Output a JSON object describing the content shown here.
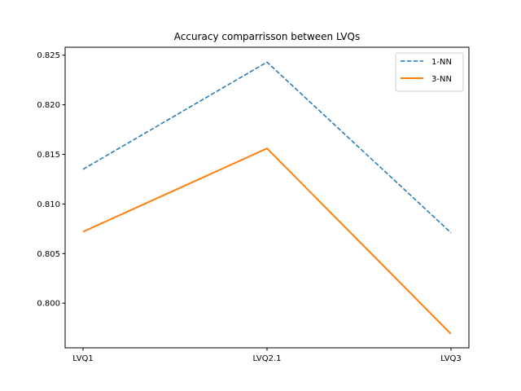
{
  "chart_data": {
    "type": "line",
    "title": "Accuracy comparrisson between LVQs",
    "xlabel": "",
    "ylabel": "",
    "categories": [
      "LVQ1",
      "LVQ2.1",
      "LVQ3"
    ],
    "ylim": [
      0.7955,
      0.8258
    ],
    "yticks": [
      0.8,
      0.805,
      0.81,
      0.815,
      0.82,
      0.825
    ],
    "ytick_labels": [
      "0.800",
      "0.805",
      "0.810",
      "0.815",
      "0.820",
      "0.825"
    ],
    "grid": false,
    "legend_position": "top-right",
    "series": [
      {
        "name": "1-NN",
        "values": [
          0.8135,
          0.8243,
          0.8071
        ],
        "color": "#1f77b4",
        "style": "dashed"
      },
      {
        "name": "3-NN",
        "values": [
          0.8072,
          0.8156,
          0.7969
        ],
        "color": "#ff7f0e",
        "style": "solid"
      }
    ]
  }
}
